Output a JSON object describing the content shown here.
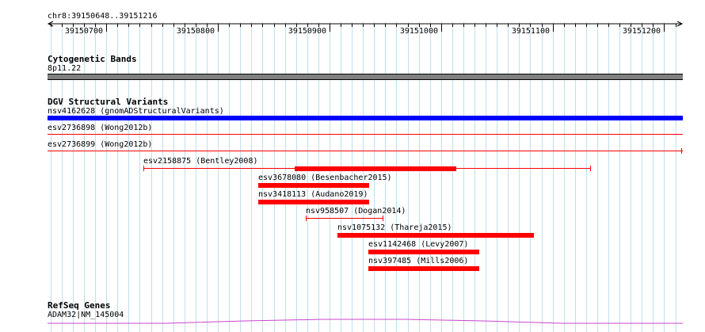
{
  "ruler": {
    "range_label": "chr8:39150648..39151216",
    "ticks": [
      "39150700",
      "39150800",
      "39150900",
      "39151000",
      "39151100",
      "39151200"
    ]
  },
  "tracks": {
    "cytoband": {
      "title": "Cytogenetic Bands",
      "band_label": "8p11.22"
    },
    "dgv": {
      "title": "DGV Structural Variants",
      "features": [
        {
          "label": "nsv4162628 (gnomADStructuralVariants)",
          "color": "#0000ff"
        },
        {
          "label": "esv2736898 (Wong2012b)",
          "color": "#ff0000"
        },
        {
          "label": "esv2736899 (Wong2012b)",
          "color": "#ff0000"
        },
        {
          "label": "esv2158875 (Bentley2008)",
          "color": "#ff0000"
        },
        {
          "label": "esv3678080 (Besenbacher2015)",
          "color": "#ff0000"
        },
        {
          "label": "nsv3418113 (Audano2019)",
          "color": "#ff0000"
        },
        {
          "label": "nsv958507 (Dogan2014)",
          "color": "#ff0000"
        },
        {
          "label": "nsv1075132 (Thareja2015)",
          "color": "#ff0000"
        },
        {
          "label": "esv1142468 (Levy2007)",
          "color": "#ff0000"
        },
        {
          "label": "nsv397485 (Mills2006)",
          "color": "#ff0000"
        }
      ]
    },
    "refseq": {
      "title": "RefSeq Genes",
      "gene_label": "ADAM32|NM_145004",
      "color": "#cc44cc"
    }
  }
}
